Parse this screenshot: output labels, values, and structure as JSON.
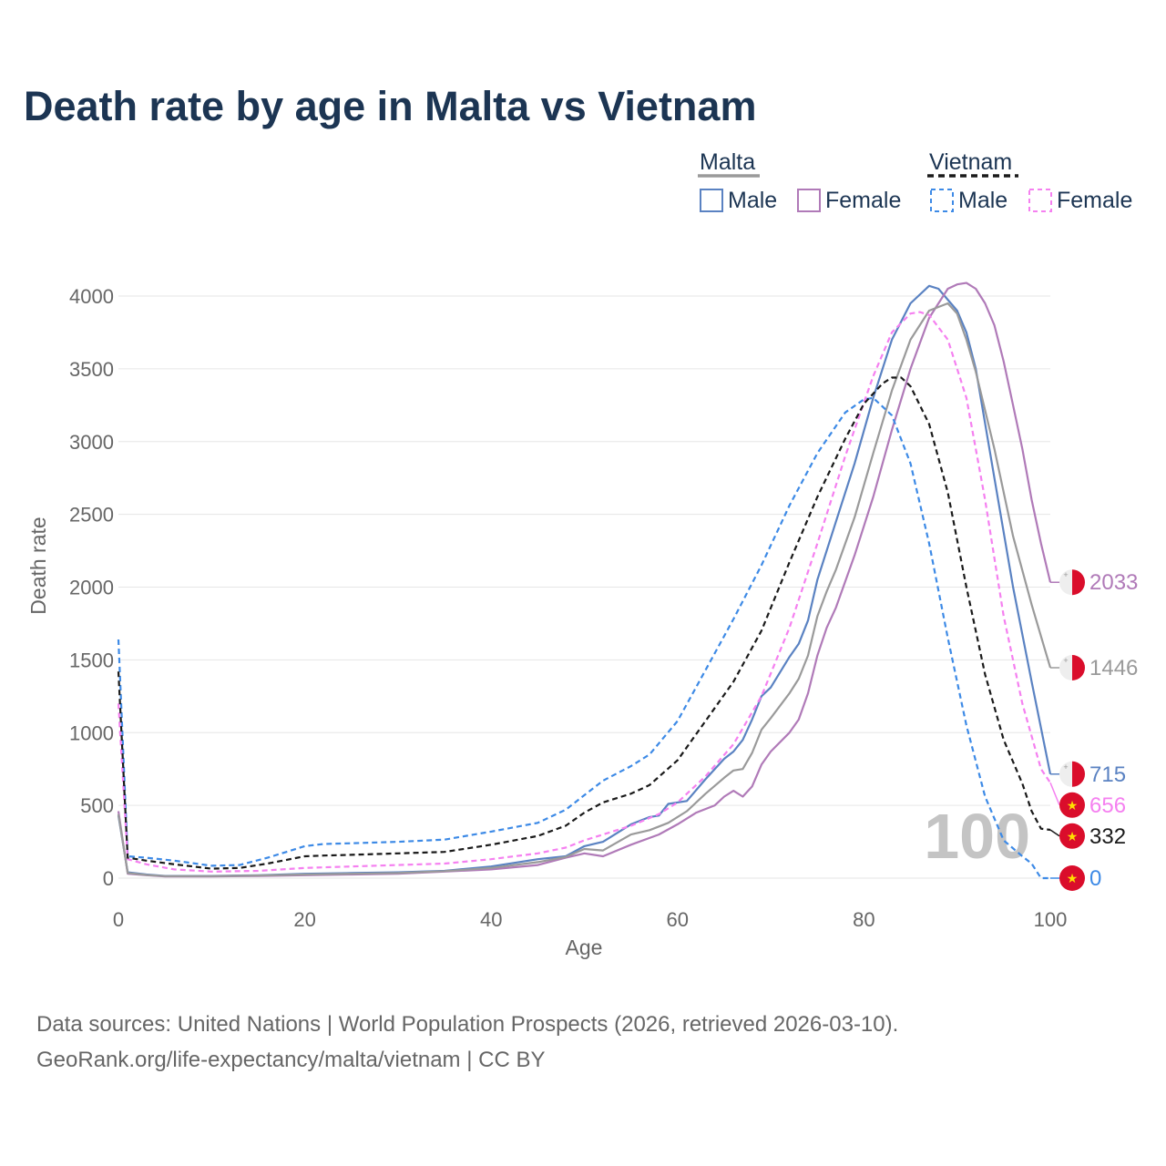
{
  "title": "Death rate by age in Malta vs Vietnam",
  "legend": {
    "group1": "Malta",
    "group2": "Vietnam",
    "male": "Male",
    "female": "Female"
  },
  "colors": {
    "malta_male": "#5a82c2",
    "malta_female": "#b07ab8",
    "malta_total": "#9a9a9a",
    "vietnam_male": "#3d8ae6",
    "vietnam_female": "#f580f0",
    "vietnam_total": "#1a1a1a",
    "title": "#1c3553",
    "flag_red": "#da0d2b",
    "flag_white": "#eeeeee",
    "vn_star": "#ffde00"
  },
  "year_label": "100",
  "source_line1": "Data sources: United Nations | World Population Prospects (2026, retrieved 2026-03-10).",
  "source_line2": "GeoRank.org/life-expectancy/malta/vietnam | CC BY",
  "chart_data": {
    "type": "line",
    "title": "Death rate by age in Malta vs Vietnam",
    "xlabel": "Age",
    "ylabel": "Death rate",
    "xlim": [
      0,
      100
    ],
    "ylim": [
      0,
      4000
    ],
    "xticks": [
      0,
      20,
      40,
      60,
      80,
      100
    ],
    "yticks": [
      0,
      500,
      1000,
      1500,
      2000,
      2500,
      3000,
      3500,
      4000
    ],
    "grid": true,
    "series": [
      {
        "name": "Malta Male",
        "key": "malta_male",
        "dash": false,
        "end_value": "715",
        "flag": "malta",
        "points": [
          [
            0,
            430
          ],
          [
            1,
            40
          ],
          [
            3,
            25
          ],
          [
            5,
            15
          ],
          [
            10,
            15
          ],
          [
            15,
            20
          ],
          [
            20,
            30
          ],
          [
            25,
            35
          ],
          [
            30,
            40
          ],
          [
            35,
            50
          ],
          [
            40,
            80
          ],
          [
            45,
            130
          ],
          [
            48,
            150
          ],
          [
            50,
            220
          ],
          [
            52,
            250
          ],
          [
            55,
            370
          ],
          [
            57,
            420
          ],
          [
            58,
            430
          ],
          [
            59,
            510
          ],
          [
            61,
            530
          ],
          [
            63,
            680
          ],
          [
            65,
            820
          ],
          [
            66,
            870
          ],
          [
            67,
            950
          ],
          [
            68,
            1090
          ],
          [
            69,
            1250
          ],
          [
            70,
            1310
          ],
          [
            72,
            1520
          ],
          [
            73,
            1610
          ],
          [
            74,
            1770
          ],
          [
            75,
            2050
          ],
          [
            77,
            2450
          ],
          [
            79,
            2850
          ],
          [
            81,
            3300
          ],
          [
            83,
            3700
          ],
          [
            85,
            3950
          ],
          [
            87,
            4070
          ],
          [
            88,
            4050
          ],
          [
            90,
            3900
          ],
          [
            91,
            3750
          ],
          [
            92,
            3500
          ],
          [
            94,
            2750
          ],
          [
            96,
            2000
          ],
          [
            98,
            1350
          ],
          [
            100,
            715
          ]
        ]
      },
      {
        "name": "Malta Female",
        "key": "malta_female",
        "dash": false,
        "end_value": "2033",
        "flag": "malta",
        "points": [
          [
            0,
            460
          ],
          [
            1,
            30
          ],
          [
            3,
            20
          ],
          [
            5,
            12
          ],
          [
            10,
            12
          ],
          [
            15,
            15
          ],
          [
            20,
            20
          ],
          [
            25,
            25
          ],
          [
            30,
            30
          ],
          [
            35,
            45
          ],
          [
            40,
            60
          ],
          [
            45,
            90
          ],
          [
            48,
            140
          ],
          [
            50,
            170
          ],
          [
            52,
            150
          ],
          [
            55,
            230
          ],
          [
            58,
            300
          ],
          [
            60,
            370
          ],
          [
            62,
            450
          ],
          [
            64,
            500
          ],
          [
            65,
            560
          ],
          [
            66,
            600
          ],
          [
            67,
            560
          ],
          [
            68,
            630
          ],
          [
            69,
            780
          ],
          [
            70,
            870
          ],
          [
            72,
            1000
          ],
          [
            73,
            1090
          ],
          [
            74,
            1270
          ],
          [
            75,
            1530
          ],
          [
            76,
            1720
          ],
          [
            77,
            1860
          ],
          [
            79,
            2220
          ],
          [
            81,
            2620
          ],
          [
            83,
            3080
          ],
          [
            85,
            3500
          ],
          [
            87,
            3850
          ],
          [
            89,
            4050
          ],
          [
            90,
            4080
          ],
          [
            91,
            4090
          ],
          [
            92,
            4050
          ],
          [
            93,
            3950
          ],
          [
            94,
            3800
          ],
          [
            95,
            3550
          ],
          [
            96,
            3250
          ],
          [
            97,
            2950
          ],
          [
            98,
            2600
          ],
          [
            99,
            2300
          ],
          [
            100,
            2033
          ]
        ]
      },
      {
        "name": "Malta Total",
        "key": "malta_total",
        "dash": false,
        "end_value": "1446",
        "flag": "malta",
        "points": [
          [
            0,
            440
          ],
          [
            1,
            35
          ],
          [
            3,
            22
          ],
          [
            5,
            14
          ],
          [
            10,
            14
          ],
          [
            15,
            18
          ],
          [
            20,
            25
          ],
          [
            25,
            30
          ],
          [
            30,
            35
          ],
          [
            35,
            48
          ],
          [
            40,
            70
          ],
          [
            45,
            110
          ],
          [
            48,
            145
          ],
          [
            50,
            200
          ],
          [
            52,
            190
          ],
          [
            55,
            300
          ],
          [
            57,
            330
          ],
          [
            59,
            380
          ],
          [
            61,
            460
          ],
          [
            63,
            580
          ],
          [
            65,
            690
          ],
          [
            66,
            740
          ],
          [
            67,
            750
          ],
          [
            68,
            860
          ],
          [
            69,
            1020
          ],
          [
            70,
            1100
          ],
          [
            72,
            1270
          ],
          [
            73,
            1370
          ],
          [
            74,
            1530
          ],
          [
            75,
            1800
          ],
          [
            76,
            1970
          ],
          [
            77,
            2120
          ],
          [
            79,
            2480
          ],
          [
            81,
            2920
          ],
          [
            83,
            3350
          ],
          [
            85,
            3700
          ],
          [
            87,
            3900
          ],
          [
            89,
            3950
          ],
          [
            90,
            3880
          ],
          [
            91,
            3700
          ],
          [
            92,
            3480
          ],
          [
            94,
            2950
          ],
          [
            96,
            2350
          ],
          [
            98,
            1880
          ],
          [
            100,
            1446
          ]
        ]
      },
      {
        "name": "Vietnam Male",
        "key": "vietnam_male",
        "dash": true,
        "end_value": "0",
        "flag": "vietnam",
        "points": [
          [
            0,
            1640
          ],
          [
            1,
            150
          ],
          [
            3,
            140
          ],
          [
            6,
            120
          ],
          [
            10,
            85
          ],
          [
            13,
            90
          ],
          [
            16,
            140
          ],
          [
            20,
            220
          ],
          [
            22,
            235
          ],
          [
            25,
            240
          ],
          [
            30,
            250
          ],
          [
            35,
            265
          ],
          [
            40,
            320
          ],
          [
            45,
            380
          ],
          [
            48,
            470
          ],
          [
            50,
            570
          ],
          [
            52,
            670
          ],
          [
            55,
            770
          ],
          [
            57,
            850
          ],
          [
            60,
            1080
          ],
          [
            63,
            1430
          ],
          [
            66,
            1780
          ],
          [
            69,
            2150
          ],
          [
            72,
            2560
          ],
          [
            75,
            2920
          ],
          [
            78,
            3200
          ],
          [
            80,
            3290
          ],
          [
            81,
            3300
          ],
          [
            83,
            3180
          ],
          [
            85,
            2850
          ],
          [
            87,
            2300
          ],
          [
            89,
            1650
          ],
          [
            91,
            1050
          ],
          [
            93,
            560
          ],
          [
            95,
            260
          ],
          [
            97,
            150
          ],
          [
            98,
            100
          ],
          [
            99,
            0
          ],
          [
            100,
            0
          ]
        ]
      },
      {
        "name": "Vietnam Female",
        "key": "vietnam_female",
        "dash": true,
        "end_value": "656",
        "flag": "vietnam",
        "points": [
          [
            0,
            1200
          ],
          [
            1,
            130
          ],
          [
            3,
            95
          ],
          [
            6,
            60
          ],
          [
            10,
            45
          ],
          [
            15,
            50
          ],
          [
            20,
            70
          ],
          [
            25,
            80
          ],
          [
            30,
            90
          ],
          [
            35,
            100
          ],
          [
            40,
            130
          ],
          [
            45,
            170
          ],
          [
            48,
            210
          ],
          [
            50,
            260
          ],
          [
            55,
            360
          ],
          [
            58,
            440
          ],
          [
            60,
            520
          ],
          [
            63,
            700
          ],
          [
            66,
            920
          ],
          [
            69,
            1250
          ],
          [
            72,
            1720
          ],
          [
            75,
            2300
          ],
          [
            78,
            2900
          ],
          [
            81,
            3450
          ],
          [
            83,
            3750
          ],
          [
            85,
            3880
          ],
          [
            86,
            3890
          ],
          [
            87,
            3870
          ],
          [
            89,
            3700
          ],
          [
            91,
            3300
          ],
          [
            93,
            2600
          ],
          [
            95,
            1800
          ],
          [
            97,
            1200
          ],
          [
            99,
            750
          ],
          [
            100,
            656
          ]
        ]
      },
      {
        "name": "Vietnam Total",
        "key": "vietnam_total",
        "dash": true,
        "end_value": "332",
        "flag": "vietnam",
        "points": [
          [
            0,
            1420
          ],
          [
            1,
            140
          ],
          [
            3,
            120
          ],
          [
            6,
            95
          ],
          [
            10,
            65
          ],
          [
            13,
            70
          ],
          [
            16,
            100
          ],
          [
            20,
            150
          ],
          [
            22,
            155
          ],
          [
            25,
            160
          ],
          [
            30,
            170
          ],
          [
            35,
            180
          ],
          [
            40,
            230
          ],
          [
            45,
            290
          ],
          [
            48,
            360
          ],
          [
            50,
            450
          ],
          [
            52,
            520
          ],
          [
            55,
            580
          ],
          [
            57,
            640
          ],
          [
            60,
            810
          ],
          [
            63,
            1080
          ],
          [
            66,
            1350
          ],
          [
            69,
            1700
          ],
          [
            72,
            2170
          ],
          [
            75,
            2620
          ],
          [
            78,
            3020
          ],
          [
            80,
            3260
          ],
          [
            82,
            3400
          ],
          [
            83,
            3440
          ],
          [
            84,
            3440
          ],
          [
            85,
            3380
          ],
          [
            87,
            3120
          ],
          [
            89,
            2650
          ],
          [
            91,
            2000
          ],
          [
            93,
            1400
          ],
          [
            95,
            950
          ],
          [
            97,
            650
          ],
          [
            98,
            460
          ],
          [
            99,
            340
          ],
          [
            100,
            332
          ]
        ]
      }
    ]
  }
}
